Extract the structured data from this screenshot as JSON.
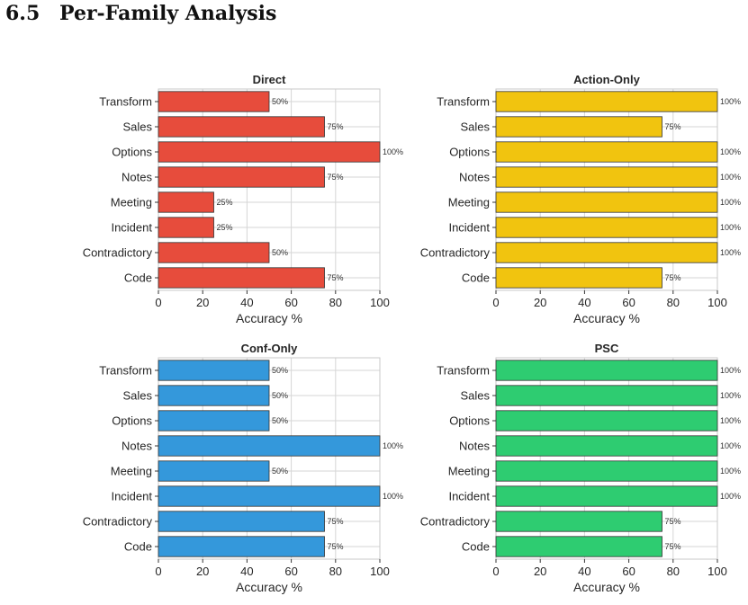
{
  "section": {
    "number": "6.5",
    "title": "Per-Family Analysis"
  },
  "chart_data": [
    {
      "type": "bar",
      "orientation": "horizontal",
      "title": "Direct",
      "categories": [
        "Transform",
        "Sales",
        "Options",
        "Notes",
        "Meeting",
        "Incident",
        "Contradictory",
        "Code"
      ],
      "values": [
        50,
        75,
        100,
        75,
        25,
        25,
        50,
        75
      ],
      "data_labels": [
        "50%",
        "75%",
        "100%",
        "75%",
        "25%",
        "25%",
        "50%",
        "75%"
      ],
      "xlabel": "Accuracy %",
      "xlim": [
        0,
        100
      ],
      "xticks": [
        0,
        20,
        40,
        60,
        80,
        100
      ],
      "color": "#e74c3c",
      "grid": true
    },
    {
      "type": "bar",
      "orientation": "horizontal",
      "title": "Action-Only",
      "categories": [
        "Transform",
        "Sales",
        "Options",
        "Notes",
        "Meeting",
        "Incident",
        "Contradictory",
        "Code"
      ],
      "values": [
        100,
        75,
        100,
        100,
        100,
        100,
        100,
        75
      ],
      "data_labels": [
        "100%",
        "75%",
        "100%",
        "100%",
        "100%",
        "100%",
        "100%",
        "75%"
      ],
      "xlabel": "Accuracy %",
      "xlim": [
        0,
        100
      ],
      "xticks": [
        0,
        20,
        40,
        60,
        80,
        100
      ],
      "color": "#f1c40f",
      "grid": true
    },
    {
      "type": "bar",
      "orientation": "horizontal",
      "title": "Conf-Only",
      "categories": [
        "Transform",
        "Sales",
        "Options",
        "Notes",
        "Meeting",
        "Incident",
        "Contradictory",
        "Code"
      ],
      "values": [
        50,
        50,
        50,
        100,
        50,
        100,
        75,
        75
      ],
      "data_labels": [
        "50%",
        "50%",
        "50%",
        "100%",
        "50%",
        "100%",
        "75%",
        "75%"
      ],
      "xlabel": "Accuracy %",
      "xlim": [
        0,
        100
      ],
      "xticks": [
        0,
        20,
        40,
        60,
        80,
        100
      ],
      "color": "#3498db",
      "grid": true
    },
    {
      "type": "bar",
      "orientation": "horizontal",
      "title": "PSC",
      "categories": [
        "Transform",
        "Sales",
        "Options",
        "Notes",
        "Meeting",
        "Incident",
        "Contradictory",
        "Code"
      ],
      "values": [
        100,
        100,
        100,
        100,
        100,
        100,
        75,
        75
      ],
      "data_labels": [
        "100%",
        "100%",
        "100%",
        "100%",
        "100%",
        "100%",
        "75%",
        "75%"
      ],
      "xlabel": "Accuracy %",
      "xlim": [
        0,
        100
      ],
      "xticks": [
        0,
        20,
        40,
        60,
        80,
        100
      ],
      "color": "#2ecc71",
      "grid": true
    }
  ]
}
